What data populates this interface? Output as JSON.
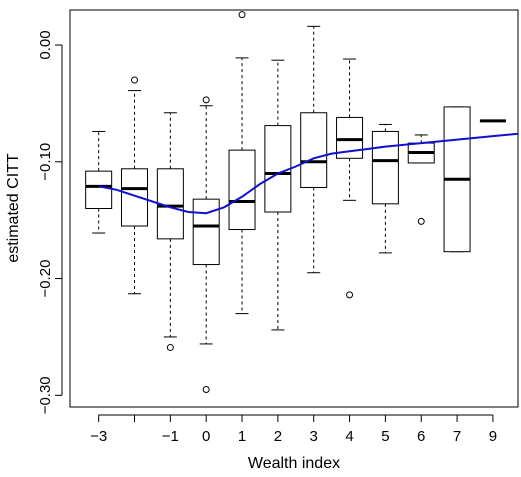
{
  "chart_data": {
    "type": "box",
    "xlabel": "Wealth index",
    "ylabel": "estimated CITT",
    "ylim": [
      -0.31,
      0.03
    ],
    "yticks": [
      0.0,
      -0.1,
      -0.2,
      -0.3
    ],
    "ytick_labels": [
      "0.00",
      "−0.10",
      "−0.20",
      "−0.30"
    ],
    "x_positions": [
      1,
      2,
      3,
      4,
      5,
      6,
      7,
      8,
      9,
      10,
      11,
      12
    ],
    "xlim": [
      0.2,
      12.7
    ],
    "xtick_labels": [
      "−3",
      "",
      "−1",
      "0",
      "1",
      "2",
      "3",
      "4",
      "5",
      "6",
      "7",
      "9"
    ],
    "boxes": [
      {
        "min": -0.161,
        "q1": -0.14,
        "median": -0.121,
        "q3": -0.108,
        "max": -0.074,
        "outliers": []
      },
      {
        "min": -0.213,
        "q1": -0.155,
        "median": -0.123,
        "q3": -0.106,
        "max": -0.039,
        "outliers": [
          -0.03
        ]
      },
      {
        "min": -0.25,
        "q1": -0.166,
        "median": -0.138,
        "q3": -0.106,
        "max": -0.058,
        "outliers": [
          -0.259
        ]
      },
      {
        "min": -0.256,
        "q1": -0.188,
        "median": -0.155,
        "q3": -0.132,
        "max": -0.052,
        "outliers": [
          -0.047,
          -0.295
        ]
      },
      {
        "min": -0.23,
        "q1": -0.158,
        "median": -0.134,
        "q3": -0.09,
        "max": -0.011,
        "outliers": [
          0.026
        ]
      },
      {
        "min": -0.244,
        "q1": -0.143,
        "median": -0.11,
        "q3": -0.069,
        "max": -0.013,
        "outliers": []
      },
      {
        "min": -0.195,
        "q1": -0.122,
        "median": -0.1,
        "q3": -0.058,
        "max": 0.016,
        "outliers": []
      },
      {
        "min": -0.133,
        "q1": -0.097,
        "median": -0.081,
        "q3": -0.062,
        "max": -0.012,
        "outliers": [
          -0.214
        ]
      },
      {
        "min": -0.178,
        "q1": -0.136,
        "median": -0.099,
        "q3": -0.074,
        "max": -0.068,
        "outliers": []
      },
      {
        "min": -0.101,
        "q1": -0.101,
        "median": -0.092,
        "q3": -0.084,
        "max": -0.077,
        "outliers": [
          -0.151
        ]
      },
      {
        "min": -0.177,
        "q1": -0.177,
        "median": -0.115,
        "q3": -0.053,
        "max": -0.053,
        "outliers": []
      },
      {
        "min": -0.065,
        "q1": -0.065,
        "median": -0.065,
        "q3": -0.065,
        "max": -0.065,
        "outliers": []
      }
    ],
    "smooth_line": {
      "color": "#1010d0",
      "x": [
        1.0,
        1.5,
        2.0,
        2.5,
        3.0,
        3.5,
        4.0,
        4.5,
        5.0,
        5.5,
        6.0,
        6.5,
        7.0,
        7.5,
        8.0,
        8.5,
        9.0,
        10.0,
        11.0,
        12.0,
        12.7
      ],
      "y": [
        -0.121,
        -0.124,
        -0.129,
        -0.134,
        -0.139,
        -0.143,
        -0.144,
        -0.139,
        -0.13,
        -0.119,
        -0.11,
        -0.104,
        -0.097,
        -0.093,
        -0.091,
        -0.089,
        -0.087,
        -0.084,
        -0.081,
        -0.078,
        -0.076
      ]
    }
  }
}
